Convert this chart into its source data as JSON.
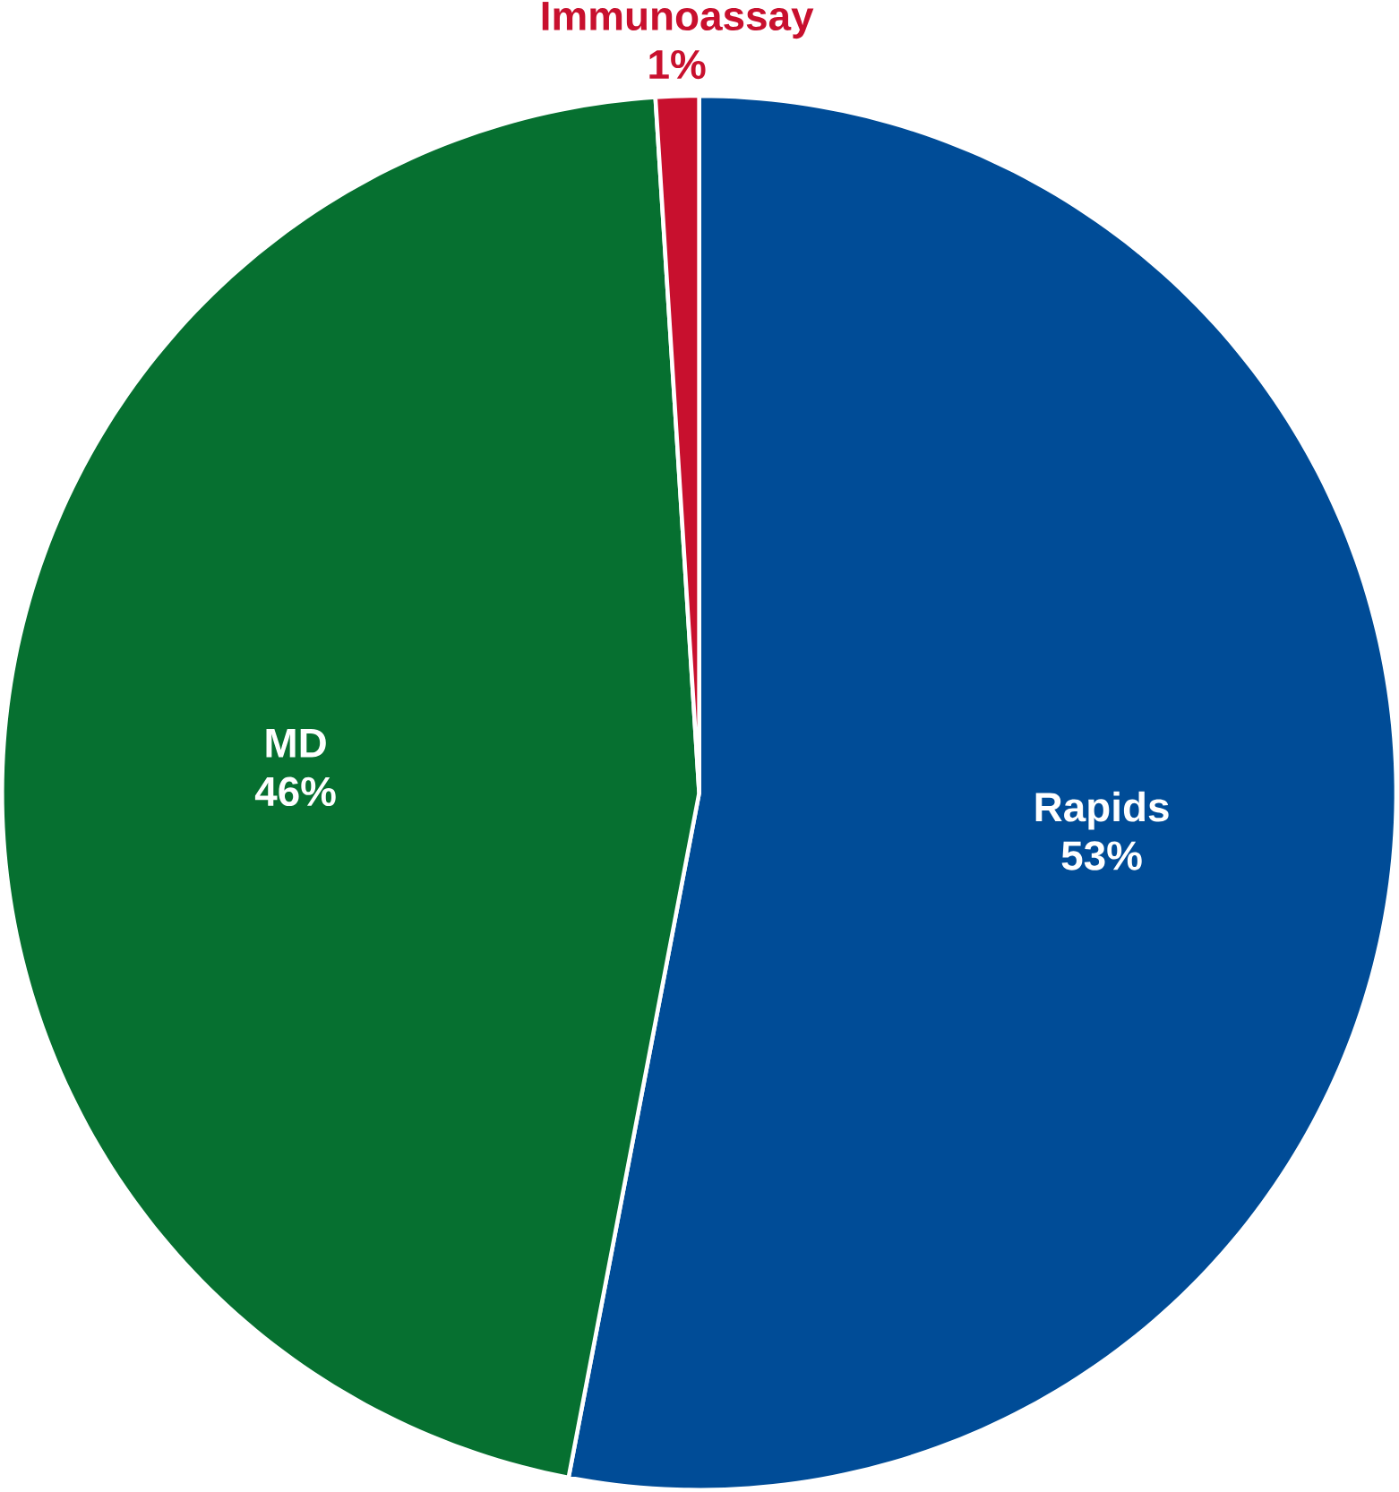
{
  "chart_data": {
    "type": "pie",
    "categories": [
      "Rapids",
      "MD",
      "Immunoassay"
    ],
    "values": [
      53,
      46,
      1
    ],
    "colors": [
      "#004c97",
      "#067030",
      "#c8102e"
    ],
    "value_labels": [
      "53%",
      "46%",
      "1%"
    ]
  }
}
